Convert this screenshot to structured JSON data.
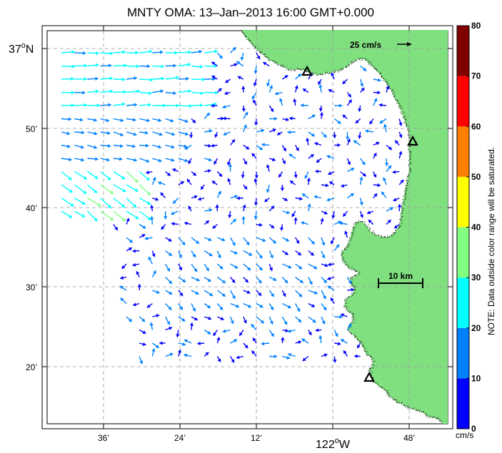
{
  "title": "MNTY OMA: 13–Jan–2013 16:00 GMT+0.000",
  "lat_labels": {
    "lat_37": {
      "deg": "37",
      "deg_sym": "o",
      "hemi": "N"
    },
    "lat_50": "50’",
    "lat_40": "40’",
    "lat_30": "30’",
    "lat_20": "20’"
  },
  "lon_labels": {
    "lon_36": "36’",
    "lon_24": "24’",
    "lon_12": "12’",
    "lon_122": {
      "deg": "122",
      "deg_sym": "o",
      "hemi": "W"
    },
    "lon_48": "48’"
  },
  "reference_vector": {
    "label": "25 cm/s",
    "arrow": "→"
  },
  "scale_bar": {
    "label": "10 km"
  },
  "colorbar": {
    "units": "cm/s",
    "ticks": [
      "0",
      "10",
      "20",
      "30",
      "40",
      "50",
      "60",
      "70",
      "80"
    ],
    "colors": [
      "#0000ff",
      "#0080ff",
      "#00ffff",
      "#80ff80",
      "#ffff00",
      "#ff8000",
      "#ff0000",
      "#800000"
    ],
    "note": "NOTE: Data outside color range will be saturated."
  },
  "colors": {
    "land": "#80e080",
    "coast": "#000000",
    "frame": "#000000",
    "grid": "#aaaaaa"
  },
  "markers": [
    {
      "name": "station-triangle-north",
      "icon": "triangle-icon"
    },
    {
      "name": "station-triangle-east",
      "icon": "triangle-icon"
    },
    {
      "name": "station-triangle-south",
      "icon": "triangle-icon"
    }
  ]
}
